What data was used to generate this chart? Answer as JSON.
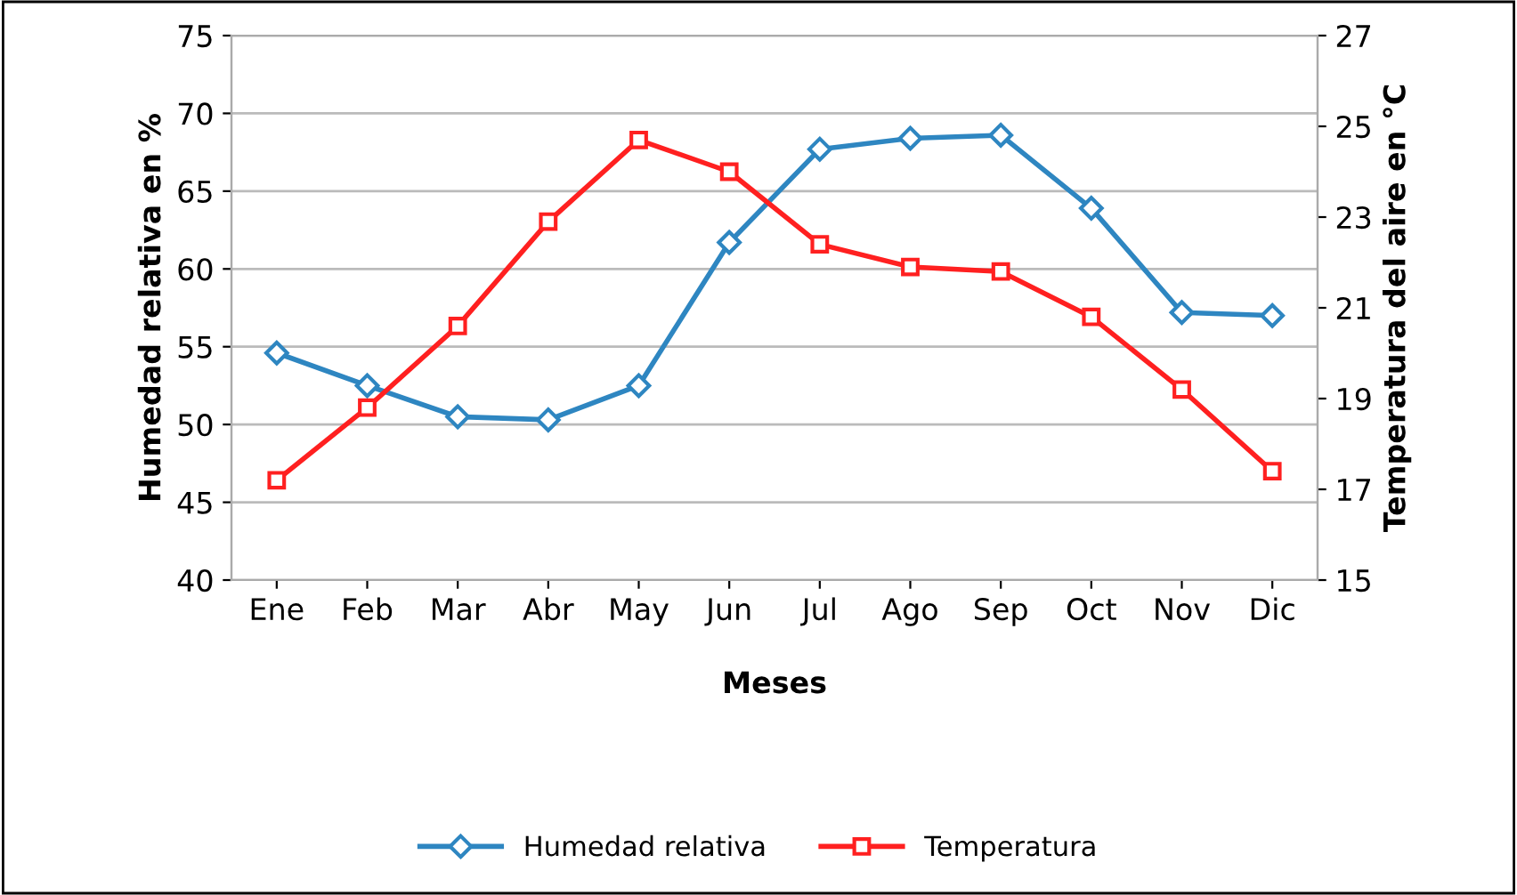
{
  "chart_data": {
    "type": "line",
    "xlabel": "Meses",
    "ylabel": "Humedad relativa en %",
    "y2label": "Temperatura del aire en °C",
    "categories": [
      "Ene",
      "Feb",
      "Mar",
      "Abr",
      "May",
      "Jun",
      "Jul",
      "Ago",
      "Sep",
      "Oct",
      "Nov",
      "Dic"
    ],
    "series": [
      {
        "name": "Humedad relativa",
        "color": "#2e86c1",
        "marker": "diamond",
        "values": [
          54.6,
          52.5,
          50.5,
          50.3,
          52.5,
          61.7,
          67.7,
          68.4,
          68.6,
          63.9,
          57.2,
          57.0
        ]
      },
      {
        "name": "Temperatura",
        "color": "#ff2020",
        "marker": "square",
        "axis": "y2",
        "values": [
          17.2,
          18.8,
          20.6,
          22.9,
          24.7,
          24.0,
          22.4,
          21.9,
          21.8,
          20.8,
          19.2,
          17.4
        ]
      }
    ],
    "ylim": [
      40,
      75
    ],
    "yticks": [
      40,
      45,
      50,
      55,
      60,
      65,
      70,
      75
    ],
    "y2lim": [
      15,
      27
    ],
    "y2ticks": [
      15,
      17,
      19,
      21,
      23,
      25,
      27
    ],
    "grid": "y",
    "legend": "bottom",
    "line_style": "solid"
  }
}
